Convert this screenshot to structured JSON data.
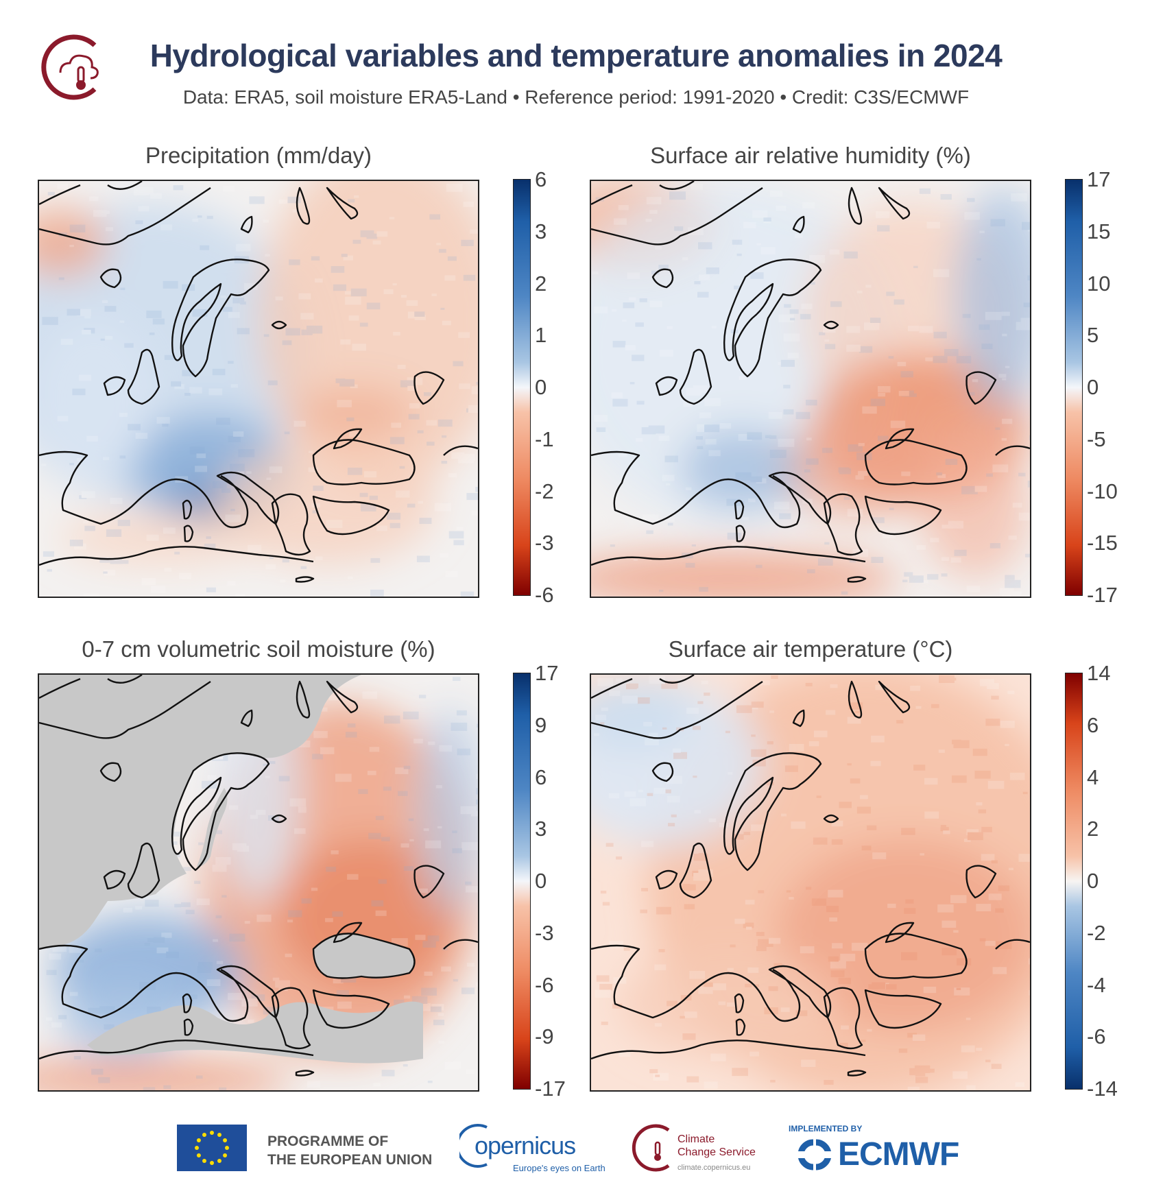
{
  "header": {
    "logo": "c3s-climate-logo-icon",
    "title": "Hydrological variables and temperature anomalies in 2024",
    "subtitle": "Data: ERA5, soil moisture ERA5-Land •  Reference period: 1991-2020 • Credit: C3S/ECMWF"
  },
  "panels": [
    {
      "title": "Precipitation (mm/day)",
      "ticks": [
        "6",
        "3",
        "2",
        "1",
        "0",
        "-1",
        "-2",
        "-3",
        "-6"
      ],
      "palette": "blue-top",
      "field": "precipitation"
    },
    {
      "title": "Surface air relative humidity (%)",
      "ticks": [
        "17",
        "15",
        "10",
        "5",
        "0",
        "-5",
        "-10",
        "-15",
        "-17"
      ],
      "palette": "blue-top",
      "field": "humidity"
    },
    {
      "title": "0-7 cm volumetric soil moisture (%)",
      "ticks": [
        "17",
        "9",
        "6",
        "3",
        "0",
        "-3",
        "-6",
        "-9",
        "-17"
      ],
      "palette": "blue-top",
      "field": "soil"
    },
    {
      "title": "Surface air temperature (°C)",
      "ticks": [
        "14",
        "6",
        "4",
        "2",
        "0",
        "-2",
        "-4",
        "-6",
        "-14"
      ],
      "palette": "red-top",
      "field": "temperature"
    }
  ],
  "colors": {
    "title": "#2c3a5c",
    "blue_dark": "#08306b",
    "red_dark": "#7f0000",
    "sea_mask": "#c8c8c8",
    "c3s_red": "#8b1a2b",
    "eu_blue": "#1f4e9a",
    "ecmwf_blue": "#1f5fa8"
  },
  "footer": {
    "eu_line1": "PROGRAMME OF",
    "eu_line2": "THE EUROPEAN UNION",
    "copernicus": "opernicus",
    "copernicus_tag": "Europe's eyes on Earth",
    "c3s_line1": "Climate",
    "c3s_line2": "Change Service",
    "c3s_url": "climate.copernicus.eu",
    "ecmwf_top": "IMPLEMENTED BY",
    "ecmwf": "ECMWF"
  }
}
